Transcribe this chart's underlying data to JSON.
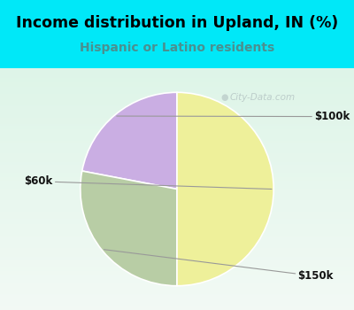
{
  "title": "Income distribution in Upland, IN (%)",
  "subtitle": "Hispanic or Latino residents",
  "slices": [
    {
      "label": "$100k",
      "value": 22,
      "color": "#caaee3"
    },
    {
      "label": "$150k",
      "value": 28,
      "color": "#b8cda5"
    },
    {
      "label": "$60k",
      "value": 50,
      "color": "#eef09a"
    }
  ],
  "startangle": 90,
  "bg_top_color": "#00e8f8",
  "bg_chart_color": "#e2f5ee",
  "title_color": "#000000",
  "subtitle_color": "#4a9090",
  "watermark": "City-Data.com"
}
